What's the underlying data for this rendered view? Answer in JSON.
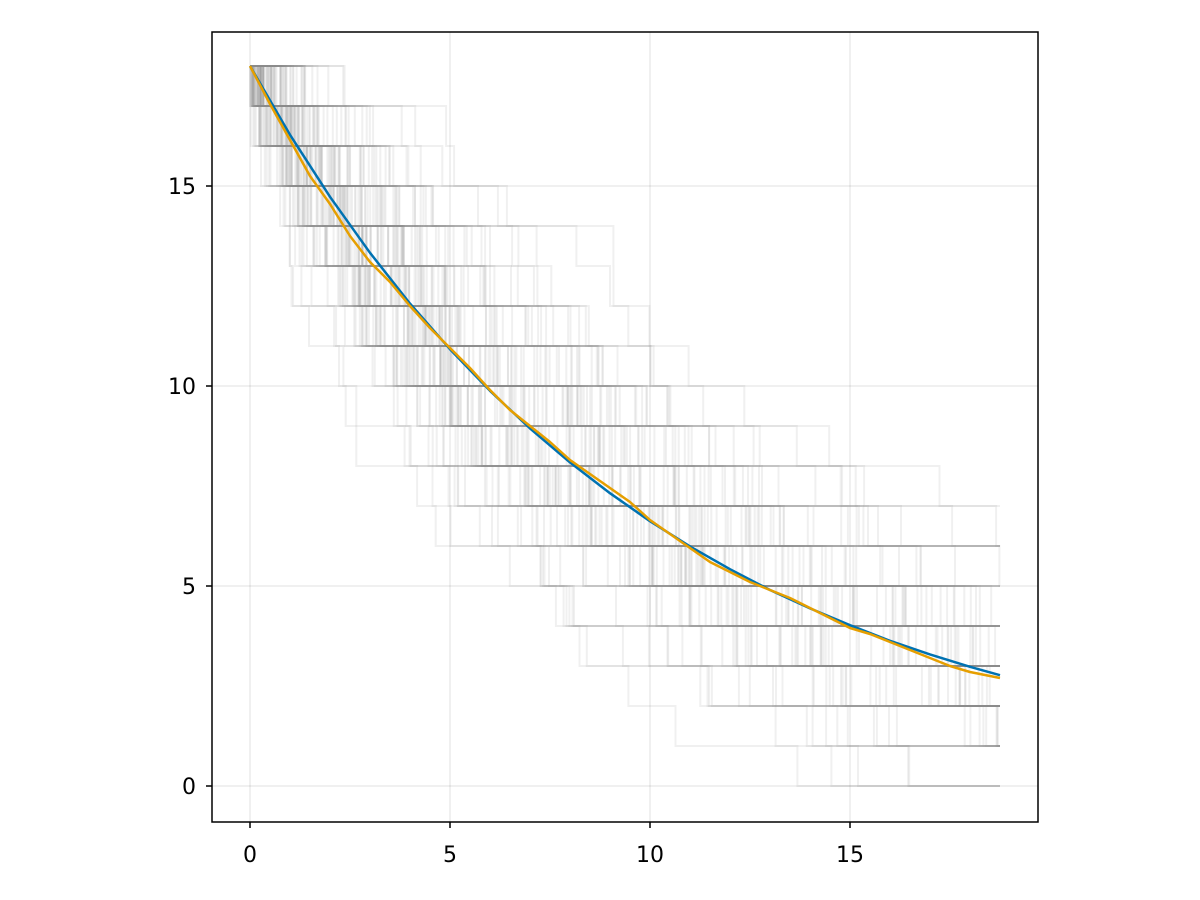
{
  "chart_data": {
    "type": "line",
    "title": "",
    "xlabel": "",
    "ylabel": "",
    "xlim": [
      -0.95,
      19.7
    ],
    "ylim": [
      -0.9,
      18.85
    ],
    "grid": true,
    "x_ticks": [
      0,
      5,
      10,
      15
    ],
    "y_ticks": [
      0,
      5,
      10,
      15
    ],
    "x_tick_labels": [
      "0",
      "5",
      "10",
      "15"
    ],
    "y_tick_labels": [
      "0",
      "5",
      "10",
      "15"
    ],
    "simulation": {
      "initial_count": 18,
      "end_time": 18.75,
      "num_trajectories": 100,
      "trajectory_color": "#8c8c8c"
    },
    "series": [
      {
        "color": "#0072b2",
        "x": [
          0,
          1,
          2,
          3,
          4,
          5,
          6,
          7,
          8,
          9,
          10,
          11,
          12,
          13,
          14,
          15,
          16,
          17,
          18,
          18.75
        ],
        "y": [
          18.0,
          16.28,
          14.73,
          13.33,
          12.06,
          10.92,
          9.88,
          8.94,
          8.09,
          7.32,
          6.62,
          5.99,
          5.42,
          4.9,
          4.44,
          4.02,
          3.63,
          3.29,
          2.98,
          2.77
        ]
      },
      {
        "color": "#e69f00",
        "x": [
          0,
          0.5,
          1,
          1.5,
          2,
          2.5,
          3,
          3.5,
          4,
          4.5,
          5,
          5.5,
          6,
          6.5,
          7,
          7.5,
          8,
          8.5,
          9,
          9.5,
          10,
          10.5,
          11,
          11.5,
          12,
          12.5,
          13,
          13.5,
          14,
          14.5,
          15,
          15.5,
          16,
          16.5,
          17,
          17.5,
          18,
          18.75
        ],
        "y": [
          18.0,
          17.05,
          16.15,
          15.25,
          14.55,
          13.75,
          13.1,
          12.6,
          12.0,
          11.45,
          10.95,
          10.45,
          9.9,
          9.4,
          9.0,
          8.6,
          8.15,
          7.8,
          7.45,
          7.1,
          6.65,
          6.3,
          5.95,
          5.6,
          5.35,
          5.1,
          4.9,
          4.7,
          4.45,
          4.2,
          3.95,
          3.8,
          3.6,
          3.4,
          3.2,
          3.0,
          2.85,
          2.7
        ]
      }
    ]
  }
}
